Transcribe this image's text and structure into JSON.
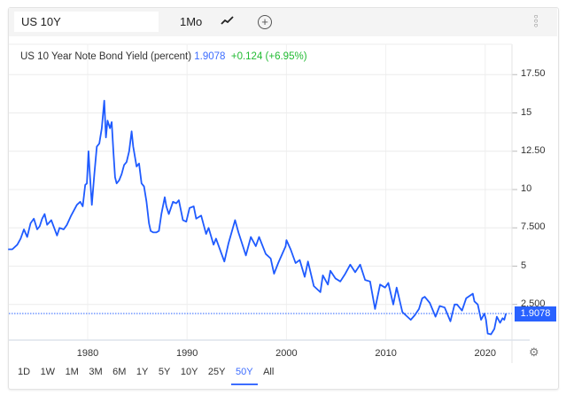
{
  "toolbar": {
    "symbol": "US 10Y",
    "interval": "1Mo",
    "chart_type_icon": "line-chart-icon",
    "add_icon": "plus-circle-icon",
    "menu_icon": "more-vertical-icon"
  },
  "legend": {
    "title": "US 10 Year Note Bond Yield (percent)",
    "value": "1.9078",
    "change": "+0.124 (+6.95%)"
  },
  "price_tag": "1.9078",
  "ranges": [
    "1D",
    "1W",
    "1M",
    "3M",
    "6M",
    "1Y",
    "5Y",
    "10Y",
    "25Y",
    "50Y",
    "All"
  ],
  "active_range": "50Y",
  "colors": {
    "line": "#1f5bff",
    "accent": "#2962ff",
    "positive": "#22bb33"
  },
  "chart_data": {
    "type": "line",
    "title": "US 10 Year Note Bond Yield (percent)",
    "y_ticks": [
      "17.50",
      "15",
      "12.50",
      "10",
      "7.500",
      "5",
      "2.500"
    ],
    "y_tick_values": [
      17.5,
      15,
      12.5,
      10,
      7.5,
      5,
      2.5
    ],
    "x_ticks": [
      "1980",
      "1990",
      "2000",
      "2010",
      "2020"
    ],
    "ylim": [
      0,
      20
    ],
    "xlim": [
      "1972-01",
      "2022-06"
    ],
    "grid": true,
    "last_value": 1.9078,
    "series": [
      {
        "points": [
          [
            "1972-01",
            6.1
          ],
          [
            "1972-06",
            6.1
          ],
          [
            "1972-12",
            6.4
          ],
          [
            "1973-04",
            6.8
          ],
          [
            "1973-08",
            7.4
          ],
          [
            "1973-12",
            6.9
          ],
          [
            "1974-04",
            7.8
          ],
          [
            "1974-08",
            8.1
          ],
          [
            "1974-12",
            7.4
          ],
          [
            "1975-03",
            7.6
          ],
          [
            "1975-06",
            8.1
          ],
          [
            "1975-09",
            8.4
          ],
          [
            "1975-12",
            7.7
          ],
          [
            "1976-05",
            8.0
          ],
          [
            "1976-12",
            7.0
          ],
          [
            "1977-03",
            7.5
          ],
          [
            "1977-08",
            7.4
          ],
          [
            "1977-12",
            7.7
          ],
          [
            "1978-05",
            8.3
          ],
          [
            "1978-12",
            9.0
          ],
          [
            "1979-04",
            9.2
          ],
          [
            "1979-07",
            8.9
          ],
          [
            "1979-10",
            10.3
          ],
          [
            "1979-12",
            10.4
          ],
          [
            "1980-02",
            12.5
          ],
          [
            "1980-03",
            11.5
          ],
          [
            "1980-06",
            9.0
          ],
          [
            "1980-09",
            11.0
          ],
          [
            "1980-12",
            12.8
          ],
          [
            "1981-03",
            13.0
          ],
          [
            "1981-06",
            14.0
          ],
          [
            "1981-09",
            15.8
          ],
          [
            "1981-11",
            13.4
          ],
          [
            "1982-01",
            14.5
          ],
          [
            "1982-04",
            14.0
          ],
          [
            "1982-06",
            14.4
          ],
          [
            "1982-08",
            12.5
          ],
          [
            "1982-10",
            10.8
          ],
          [
            "1982-12",
            10.4
          ],
          [
            "1983-03",
            10.6
          ],
          [
            "1983-06",
            11.0
          ],
          [
            "1983-09",
            11.6
          ],
          [
            "1983-12",
            11.8
          ],
          [
            "1984-03",
            12.5
          ],
          [
            "1984-06",
            13.8
          ],
          [
            "1984-08",
            12.8
          ],
          [
            "1984-12",
            11.5
          ],
          [
            "1985-03",
            11.7
          ],
          [
            "1985-06",
            10.4
          ],
          [
            "1985-09",
            10.2
          ],
          [
            "1985-12",
            9.2
          ],
          [
            "1986-03",
            7.8
          ],
          [
            "1986-05",
            7.3
          ],
          [
            "1986-08",
            7.2
          ],
          [
            "1986-12",
            7.2
          ],
          [
            "1987-03",
            7.3
          ],
          [
            "1987-06",
            8.4
          ],
          [
            "1987-10",
            9.5
          ],
          [
            "1987-12",
            8.9
          ],
          [
            "1988-03",
            8.4
          ],
          [
            "1988-08",
            9.2
          ],
          [
            "1988-12",
            9.1
          ],
          [
            "1989-03",
            9.3
          ],
          [
            "1989-08",
            8.0
          ],
          [
            "1989-12",
            7.9
          ],
          [
            "1990-04",
            8.8
          ],
          [
            "1990-09",
            8.9
          ],
          [
            "1990-12",
            8.1
          ],
          [
            "1991-06",
            8.3
          ],
          [
            "1991-12",
            7.1
          ],
          [
            "1992-03",
            7.5
          ],
          [
            "1992-09",
            6.4
          ],
          [
            "1992-12",
            6.8
          ],
          [
            "1993-06",
            5.9
          ],
          [
            "1993-10",
            5.3
          ],
          [
            "1994-03",
            6.5
          ],
          [
            "1994-11",
            8.0
          ],
          [
            "1995-03",
            7.2
          ],
          [
            "1995-12",
            5.7
          ],
          [
            "1996-06",
            6.9
          ],
          [
            "1996-12",
            6.3
          ],
          [
            "1997-04",
            6.9
          ],
          [
            "1997-12",
            5.8
          ],
          [
            "1998-06",
            5.5
          ],
          [
            "1998-10",
            4.5
          ],
          [
            "1999-03",
            5.2
          ],
          [
            "1999-12",
            6.3
          ],
          [
            "2000-01",
            6.7
          ],
          [
            "2000-06",
            6.1
          ],
          [
            "2000-12",
            5.2
          ],
          [
            "2001-05",
            5.4
          ],
          [
            "2001-11",
            4.3
          ],
          [
            "2002-03",
            5.3
          ],
          [
            "2002-10",
            3.7
          ],
          [
            "2003-06",
            3.3
          ],
          [
            "2003-09",
            4.4
          ],
          [
            "2004-03",
            3.8
          ],
          [
            "2004-06",
            4.7
          ],
          [
            "2004-12",
            4.2
          ],
          [
            "2005-06",
            4.0
          ],
          [
            "2005-12",
            4.5
          ],
          [
            "2006-06",
            5.1
          ],
          [
            "2006-12",
            4.6
          ],
          [
            "2007-06",
            5.1
          ],
          [
            "2007-12",
            4.1
          ],
          [
            "2008-06",
            4.0
          ],
          [
            "2008-12",
            2.2
          ],
          [
            "2009-06",
            3.8
          ],
          [
            "2009-12",
            3.6
          ],
          [
            "2010-04",
            3.9
          ],
          [
            "2010-10",
            2.5
          ],
          [
            "2011-02",
            3.6
          ],
          [
            "2011-09",
            2.0
          ],
          [
            "2012-07",
            1.5
          ],
          [
            "2012-12",
            1.8
          ],
          [
            "2013-05",
            2.2
          ],
          [
            "2013-09",
            2.9
          ],
          [
            "2013-12",
            3.0
          ],
          [
            "2014-06",
            2.6
          ],
          [
            "2015-01",
            1.7
          ],
          [
            "2015-06",
            2.4
          ],
          [
            "2015-12",
            2.3
          ],
          [
            "2016-07",
            1.4
          ],
          [
            "2016-12",
            2.5
          ],
          [
            "2017-03",
            2.5
          ],
          [
            "2017-09",
            2.1
          ],
          [
            "2018-02",
            2.9
          ],
          [
            "2018-10",
            3.2
          ],
          [
            "2018-12",
            2.7
          ],
          [
            "2019-04",
            2.5
          ],
          [
            "2019-08",
            1.5
          ],
          [
            "2019-12",
            1.9
          ],
          [
            "2020-02",
            1.5
          ],
          [
            "2020-04",
            0.6
          ],
          [
            "2020-08",
            0.55
          ],
          [
            "2020-12",
            0.9
          ],
          [
            "2021-03",
            1.7
          ],
          [
            "2021-07",
            1.3
          ],
          [
            "2021-10",
            1.6
          ],
          [
            "2021-12",
            1.5
          ],
          [
            "2022-02",
            1.9078
          ]
        ]
      }
    ]
  }
}
